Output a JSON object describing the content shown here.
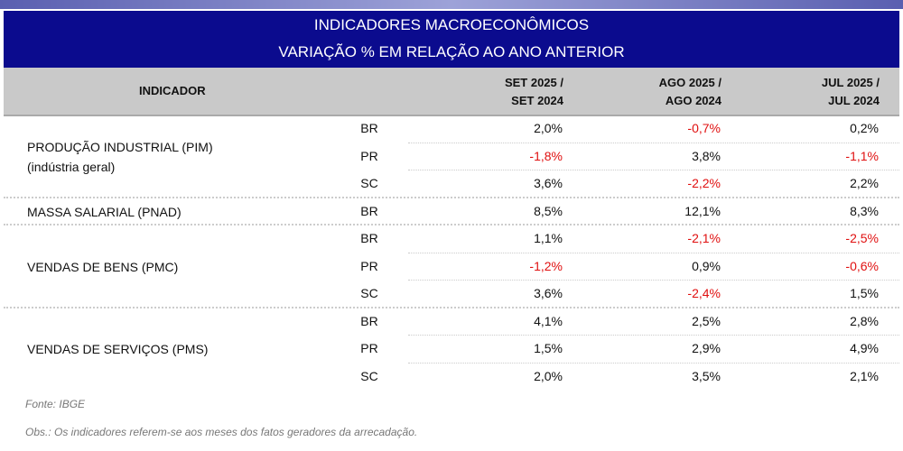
{
  "title": "INDICADORES MACROECONÔMICOS",
  "subtitle": "VARIAÇÃO % EM RELAÇÃO AO ANO ANTERIOR",
  "header": {
    "indicator": "INDICADOR",
    "col1a": "SET 2025 /",
    "col1b": "SET 2024",
    "col2a": "AGO 2025 /",
    "col2b": "AGO 2024",
    "col3a": "JUL 2025 /",
    "col3b": "JUL 2024"
  },
  "groups": [
    {
      "label": "PRODUÇÃO INDUSTRIAL (PIM)",
      "label2": "(indústria geral)",
      "rows": [
        [
          "BR",
          "2,0%",
          "-0,7%",
          "0,2%"
        ],
        [
          "PR",
          "-1,8%",
          "3,8%",
          "-1,1%"
        ],
        [
          "SC",
          "3,6%",
          "-2,2%",
          "2,2%"
        ]
      ]
    },
    {
      "label": "MASSA SALARIAL (PNAD)",
      "rows": [
        [
          "BR",
          "8,5%",
          "12,1%",
          "8,3%"
        ]
      ]
    },
    {
      "label": "VENDAS DE BENS (PMC)",
      "rows": [
        [
          "BR",
          "1,1%",
          "-2,1%",
          "-2,5%"
        ],
        [
          "PR",
          "-1,2%",
          "0,9%",
          "-0,6%"
        ],
        [
          "SC",
          "3,6%",
          "-2,4%",
          "1,5%"
        ]
      ]
    },
    {
      "label": "VENDAS DE SERVIÇOS (PMS)",
      "rows": [
        [
          "BR",
          "4,1%",
          "2,5%",
          "2,8%"
        ],
        [
          "PR",
          "1,5%",
          "2,9%",
          "4,9%"
        ],
        [
          "SC",
          "2,0%",
          "3,5%",
          "2,1%"
        ]
      ]
    }
  ],
  "footer": {
    "source": "Fonte: IBGE",
    "note": "Obs.: Os indicadores referem-se aos meses dos fatos geradores da arrecadação."
  },
  "colors": {
    "title_bg": "#0b0b8e",
    "header_bg": "#c9c9c9",
    "negative": "#e01010"
  }
}
